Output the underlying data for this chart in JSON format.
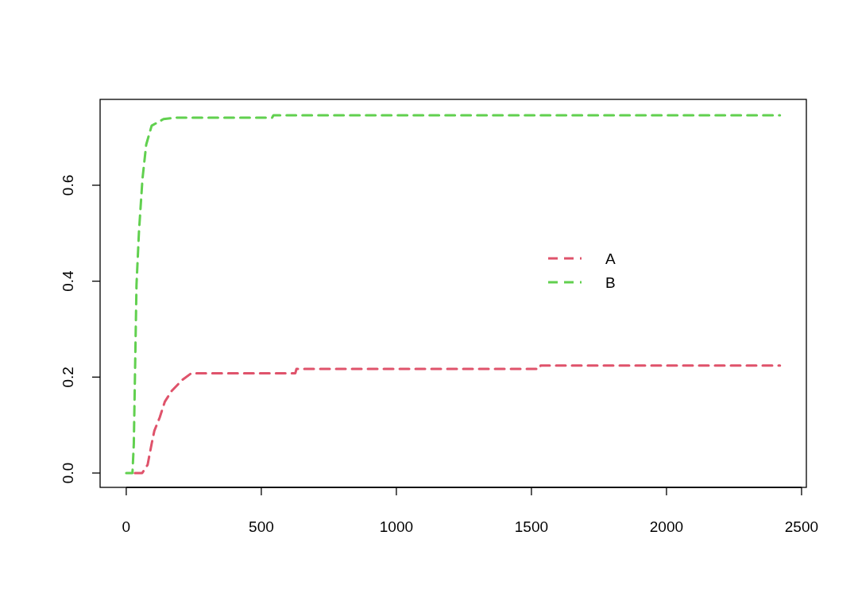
{
  "chart_data": {
    "type": "line",
    "line_style": "dashed",
    "marker": "none",
    "legend": "right",
    "grid": false,
    "xlim": [
      -96.8,
      2517.8
    ],
    "xticks": [
      0,
      500,
      1000,
      1500,
      2000,
      2500
    ],
    "ylim": [
      -0.0299,
      0.779
    ],
    "yticks": [
      {
        "value": 0,
        "label": "0.0"
      },
      {
        "value": 0.2,
        "label": "0.2"
      },
      {
        "value": 0.4,
        "label": "0.4"
      },
      {
        "value": 0.6,
        "label": "0.6"
      }
    ],
    "series": [
      {
        "name": "A",
        "color": "#df536b",
        "x": [
          32,
          59,
          79,
          94,
          104,
          124,
          143,
          168,
          207,
          241,
          626,
          630,
          1530,
          1534,
          2420
        ],
        "values": [
          0,
          0,
          0.017,
          0.061,
          0.088,
          0.116,
          0.149,
          0.171,
          0.194,
          0.208,
          0.208,
          0.217,
          0.217,
          0.224,
          0.224
        ]
      },
      {
        "name": "B",
        "color": "#61d04f",
        "x": [
          0,
          23,
          28,
          33,
          38,
          47,
          60,
          74,
          94,
          138,
          187,
          540,
          545,
          2420
        ],
        "values": [
          0,
          0,
          0.061,
          0.227,
          0.393,
          0.502,
          0.613,
          0.685,
          0.724,
          0.738,
          0.741,
          0.741,
          0.746,
          0.746
        ]
      }
    ]
  }
}
